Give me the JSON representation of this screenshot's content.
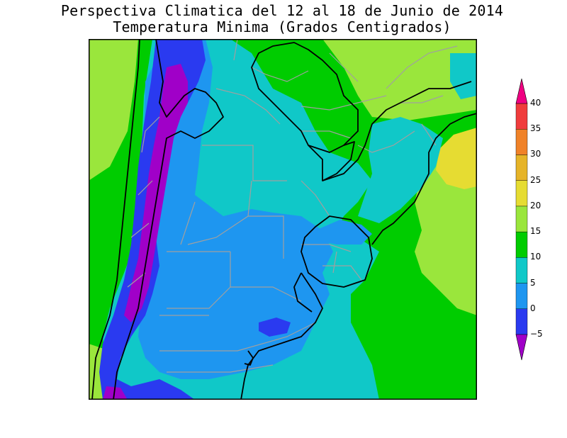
{
  "title": {
    "line1": "Perspectiva Climatica del 12 al 18 de Junio de 2014",
    "line2": "Temperatura Minima (Grados Centigrados)"
  },
  "legend": {
    "levels": [
      {
        "label": "−5",
        "value": -5,
        "color": "#2a3af0"
      },
      {
        "label": "0",
        "value": 0,
        "color": "#1e96f0"
      },
      {
        "label": "5",
        "value": 5,
        "color": "#10c8c8"
      },
      {
        "label": "10",
        "value": 10,
        "color": "#00cc00"
      },
      {
        "label": "15",
        "value": 15,
        "color": "#9ae63c"
      },
      {
        "label": "20",
        "value": 20,
        "color": "#e6dc32"
      },
      {
        "label": "25",
        "value": 25,
        "color": "#e6b428"
      },
      {
        "label": "30",
        "value": 30,
        "color": "#f08228"
      },
      {
        "label": "35",
        "value": 35,
        "color": "#f03c3c"
      },
      {
        "label": "40",
        "value": 40,
        "color": "#f00082"
      }
    ],
    "below_color": "#a000c8",
    "above_color": "#f00082"
  },
  "map_colors": {
    "purple": "#a000c8",
    "blue": "#2a3af0",
    "lightblue": "#1e96f0",
    "cyan": "#10c8c8",
    "green": "#00cc00",
    "lightgreen": "#9ae63c",
    "yellow": "#e6dc32",
    "border_country": "#000000",
    "border_province": "#a0a0a0"
  }
}
